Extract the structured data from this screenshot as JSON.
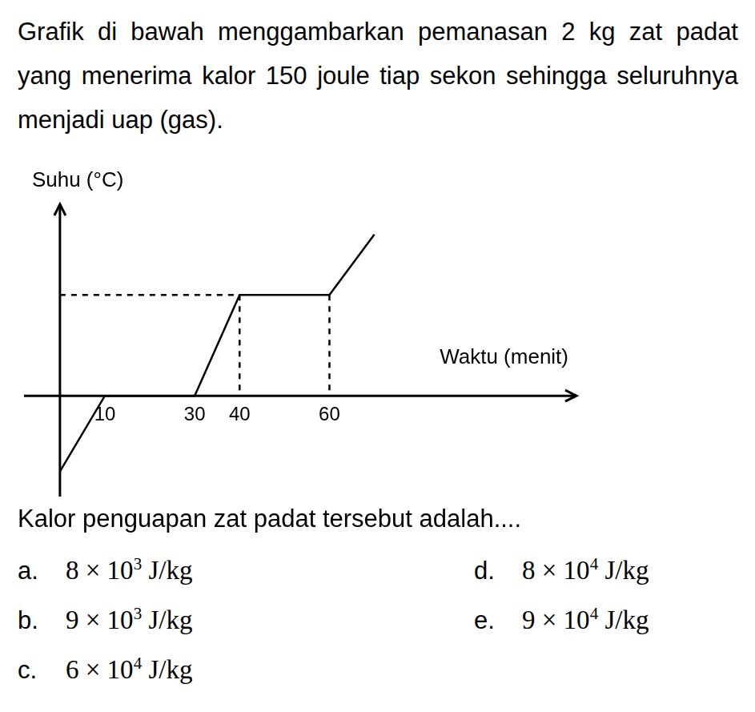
{
  "question": "Grafik di bawah menggambarkan pemanasan 2 kg zat padat yang menerima kalor 150 joule tiap sekon sehingga seluruhnya menjadi uap (gas).",
  "chart_data": {
    "type": "line",
    "y_label": "Suhu (°C)",
    "x_label": "Waktu (menit)",
    "x": [
      0,
      10,
      30,
      40,
      60,
      70
    ],
    "values": [
      -75,
      0,
      0,
      100,
      100,
      160
    ],
    "color": "#000000",
    "xlim": [
      -8,
      115
    ],
    "ylim": [
      -100,
      190
    ],
    "xticks": [
      10,
      30,
      40,
      60
    ],
    "tick_labels": "x",
    "grid": false
  },
  "prompt": "Kalor penguapan zat padat tersebut adalah....",
  "options": [
    {
      "label": "a.",
      "text": "8 × 10",
      "sup": "3",
      "unit": "J/kg"
    },
    {
      "label": "b.",
      "text": "9 × 10",
      "sup": "3",
      "unit": "J/kg"
    },
    {
      "label": "c.",
      "text": "6 × 10",
      "sup": "4",
      "unit": "J/kg"
    },
    {
      "label": "d.",
      "text": "8 × 10",
      "sup": "4",
      "unit": "J/kg"
    },
    {
      "label": "e.",
      "text": "9 × 10",
      "sup": "4",
      "unit": "J/kg"
    }
  ]
}
